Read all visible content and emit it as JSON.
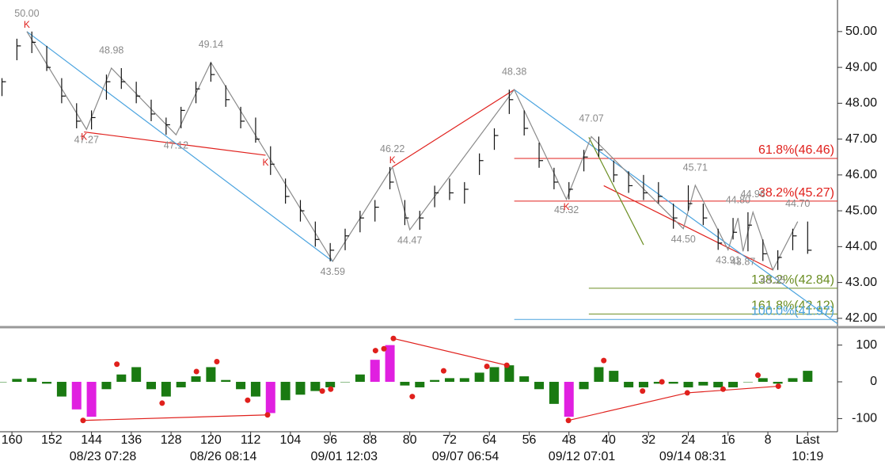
{
  "chart_data": [
    {
      "type": "ohlc",
      "xlim": [
        162.4,
        -6
      ],
      "ylim": [
        41.82,
        50.88
      ],
      "yticks": [
        {
          "value": 42,
          "label": "42.00"
        },
        {
          "value": 43,
          "label": "43.00"
        },
        {
          "value": 44,
          "label": "44.00"
        },
        {
          "value": 45,
          "label": "45.00"
        },
        {
          "value": 46,
          "label": "46.00"
        },
        {
          "value": 47,
          "label": "47.00"
        },
        {
          "value": 48,
          "label": "48.00"
        },
        {
          "value": 49,
          "label": "49.00"
        },
        {
          "value": 50,
          "label": "50.00"
        }
      ],
      "color": "#111111",
      "x": [
        162,
        159,
        156,
        153,
        150,
        147,
        144,
        141,
        138,
        135,
        132,
        129,
        126,
        123,
        120,
        117,
        114,
        111,
        108,
        105,
        102,
        99,
        96,
        93,
        90,
        87,
        84,
        81,
        78,
        75,
        72,
        69,
        66,
        63,
        60,
        57,
        54,
        51,
        48,
        45,
        42,
        39,
        36,
        33,
        30,
        27,
        24,
        21,
        18,
        15,
        12,
        9,
        6,
        3,
        0
      ],
      "high": [
        48.7,
        49.8,
        50.0,
        49.6,
        48.7,
        48.0,
        47.8,
        48.8,
        48.98,
        48.6,
        48.1,
        47.6,
        47.9,
        48.6,
        49.14,
        48.5,
        47.9,
        47.6,
        46.8,
        45.9,
        45.3,
        44.7,
        44.1,
        44.5,
        45.0,
        45.3,
        46.22,
        45.3,
        45.0,
        45.7,
        45.9,
        45.8,
        46.6,
        47.3,
        48.38,
        47.8,
        46.9,
        46.2,
        45.8,
        46.7,
        47.07,
        46.4,
        46.1,
        46.0,
        45.8,
        45.2,
        45.71,
        45.2,
        44.5,
        44.8,
        44.96,
        44.2,
        43.9,
        44.5,
        44.7
      ],
      "low": [
        48.2,
        49.2,
        49.4,
        48.9,
        48.0,
        47.3,
        47.27,
        48.1,
        48.4,
        48.0,
        47.5,
        47.12,
        47.3,
        48.0,
        48.6,
        47.9,
        47.3,
        46.9,
        46.0,
        45.2,
        44.7,
        44.0,
        43.59,
        43.9,
        44.4,
        44.7,
        45.6,
        44.6,
        44.47,
        45.1,
        45.3,
        45.2,
        46.0,
        46.7,
        47.7,
        47.1,
        46.2,
        45.6,
        45.32,
        46.1,
        46.5,
        45.8,
        45.5,
        45.3,
        45.2,
        44.5,
        45.0,
        44.6,
        43.91,
        44.2,
        43.87,
        43.6,
        43.35,
        43.9,
        43.8
      ],
      "close": [
        48.6,
        49.6,
        49.7,
        49.0,
        48.2,
        47.5,
        47.6,
        48.6,
        48.6,
        48.2,
        47.7,
        47.4,
        47.8,
        48.4,
        48.8,
        48.1,
        47.5,
        47.0,
        46.3,
        45.4,
        45.0,
        44.2,
        43.9,
        44.3,
        44.8,
        45.1,
        45.8,
        44.8,
        44.8,
        45.5,
        45.5,
        45.6,
        46.4,
        47.1,
        48.1,
        47.3,
        46.4,
        45.8,
        45.6,
        46.5,
        46.7,
        46.0,
        45.7,
        45.5,
        45.4,
        44.8,
        45.2,
        44.8,
        44.1,
        44.4,
        44.6,
        43.8,
        43.7,
        44.3,
        43.9
      ],
      "pivots": [
        {
          "x": 157,
          "value": 50.0,
          "label": "50.00",
          "kind": "high"
        },
        {
          "x": 145,
          "value": 47.27,
          "label": "47.27",
          "kind": "low"
        },
        {
          "x": 140,
          "value": 48.98,
          "label": "48.98",
          "kind": "high"
        },
        {
          "x": 127,
          "value": 47.12,
          "label": "47.12",
          "kind": "low"
        },
        {
          "x": 120,
          "value": 49.14,
          "label": "49.14",
          "kind": "high"
        },
        {
          "x": 95.5,
          "value": 43.59,
          "label": "43.59",
          "kind": "low"
        },
        {
          "x": 83.5,
          "value": 46.22,
          "label": "46.22",
          "kind": "high"
        },
        {
          "x": 80,
          "value": 44.47,
          "label": "44.47",
          "kind": "low"
        },
        {
          "x": 59,
          "value": 48.38,
          "label": "48.38",
          "kind": "high"
        },
        {
          "x": 48.5,
          "value": 45.32,
          "label": "45.32",
          "kind": "low"
        },
        {
          "x": 43.5,
          "value": 47.07,
          "label": "47.07",
          "kind": "high"
        },
        {
          "x": 25,
          "value": 44.5,
          "label": "44.50",
          "kind": "low"
        },
        {
          "x": 22.6,
          "value": 45.71,
          "label": "45.71",
          "kind": "high"
        },
        {
          "x": 16,
          "value": 43.91,
          "label": "43.91",
          "kind": "low"
        },
        {
          "x": 14,
          "value": 44.8,
          "label": "44.80",
          "kind": "high"
        },
        {
          "x": 13,
          "value": 43.87,
          "label": "43.87",
          "kind": "low"
        },
        {
          "x": 11,
          "value": 44.96,
          "label": "44.96",
          "kind": "high"
        },
        {
          "x": 7,
          "value": 43.35,
          "label": "43.35",
          "kind": "low"
        },
        {
          "x": 2,
          "value": 44.7,
          "label": "44.70",
          "kind": "high"
        }
      ],
      "markers": [
        {
          "x": 157,
          "value": 50.0,
          "label": "K",
          "kind": "high"
        },
        {
          "x": 145.5,
          "value": 47.27,
          "label": "K",
          "kind": "low"
        },
        {
          "x": 109,
          "value": 46.55,
          "label": "K",
          "kind": "low"
        },
        {
          "x": 83.5,
          "value": 46.22,
          "label": "K",
          "kind": "high"
        },
        {
          "x": 48.5,
          "value": 45.32,
          "label": "K",
          "kind": "low"
        }
      ],
      "lines": [
        {
          "color": "#e0201c",
          "x": [
            145.5,
            109
          ],
          "values": [
            47.2,
            46.55
          ]
        },
        {
          "color": "#e0201c",
          "x": [
            83.5,
            59
          ],
          "values": [
            46.22,
            48.38
          ]
        },
        {
          "color": "#e0201c",
          "x": [
            41,
            7
          ],
          "values": [
            45.7,
            43.35
          ]
        },
        {
          "color": "#4aa3df",
          "x": [
            157,
            95.5
          ],
          "values": [
            50.0,
            43.59
          ]
        },
        {
          "color": "#4aa3df",
          "x": [
            59,
            -6
          ],
          "values": [
            48.38,
            41.85
          ]
        },
        {
          "color": "#6b8e23",
          "x": [
            44,
            33
          ],
          "values": [
            47.05,
            44.05
          ]
        }
      ],
      "levels": [
        {
          "label": "61.8%(46.46)",
          "value": 46.46,
          "from": 59,
          "color": "#e0201c"
        },
        {
          "label": "38.2%(45.27)",
          "value": 45.27,
          "from": 59,
          "color": "#e0201c"
        },
        {
          "label": "138.2%(42.84)",
          "value": 42.84,
          "from": 44,
          "color": "#6b8e23"
        },
        {
          "label": "161.8%(42.12)",
          "value": 42.12,
          "from": 44,
          "color": "#6b8e23"
        },
        {
          "label": "100.0%(41.97)",
          "value": 41.97,
          "from": 59,
          "color": "#4aa3df"
        }
      ]
    },
    {
      "type": "bar",
      "xlim": [
        162.4,
        -6
      ],
      "ylim": [
        -125,
        138
      ],
      "yticks": [
        -100,
        0,
        100
      ],
      "xticks": [
        160,
        152,
        144,
        136,
        128,
        120,
        112,
        104,
        96,
        88,
        80,
        72,
        64,
        56,
        48,
        40,
        32,
        24,
        16,
        8,
        {
          "value": 0,
          "label": "Last"
        }
      ],
      "date_ticks": [
        {
          "value": 141.7,
          "label": "08/23 07:28"
        },
        {
          "value": 117.5,
          "label": "08/26 08:14"
        },
        {
          "value": 93.2,
          "label": "09/01 12:03"
        },
        {
          "value": 68.8,
          "label": "09/07 06:54"
        },
        {
          "value": 45.4,
          "label": "09/12 07:01"
        },
        {
          "value": 23.1,
          "label": "09/14 08:31"
        },
        {
          "value": 0,
          "label": "10:19"
        }
      ],
      "x": [
        162,
        159,
        156,
        153,
        150,
        147,
        144,
        141,
        138,
        135,
        132,
        129,
        126,
        123,
        120,
        117,
        114,
        111,
        108,
        105,
        102,
        99,
        96,
        93,
        90,
        87,
        84,
        81,
        78,
        75,
        72,
        69,
        66,
        63,
        60,
        57,
        54,
        51,
        48,
        45,
        42,
        39,
        36,
        33,
        30,
        27,
        24,
        21,
        18,
        15,
        12,
        9,
        6,
        3,
        0
      ],
      "values": [
        0,
        8,
        10,
        -5,
        -40,
        -75,
        -95,
        -20,
        20,
        40,
        -20,
        -40,
        -15,
        15,
        40,
        5,
        -20,
        -40,
        -85,
        -50,
        -35,
        -25,
        -15,
        0,
        20,
        60,
        100,
        -10,
        -15,
        5,
        10,
        10,
        25,
        40,
        45,
        15,
        -20,
        -60,
        -95,
        -20,
        40,
        30,
        -15,
        -15,
        -5,
        -5,
        -15,
        -10,
        -15,
        -15,
        0,
        10,
        -5,
        10,
        30
      ],
      "colors": [
        "#1a7a12",
        "#1a7a12",
        "#1a7a12",
        "#1a7a12",
        "#1a7a12",
        "#e020e0",
        "#e020e0",
        "#1a7a12",
        "#1a7a12",
        "#1a7a12",
        "#1a7a12",
        "#1a7a12",
        "#1a7a12",
        "#1a7a12",
        "#1a7a12",
        "#1a7a12",
        "#1a7a12",
        "#1a7a12",
        "#e020e0",
        "#1a7a12",
        "#1a7a12",
        "#1a7a12",
        "#1a7a12",
        "#1a7a12",
        "#1a7a12",
        "#e020e0",
        "#e020e0",
        "#1a7a12",
        "#1a7a12",
        "#1a7a12",
        "#1a7a12",
        "#1a7a12",
        "#1a7a12",
        "#1a7a12",
        "#1a7a12",
        "#1a7a12",
        "#1a7a12",
        "#1a7a12",
        "#e020e0",
        "#1a7a12",
        "#1a7a12",
        "#1a7a12",
        "#1a7a12",
        "#1a7a12",
        "#1a7a12",
        "#1a7a12",
        "#1a7a12",
        "#1a7a12",
        "#1a7a12",
        "#1a7a12",
        "#1a7a12",
        "#1a7a12",
        "#1a7a12",
        "#1a7a12",
        "#1a7a12"
      ],
      "dots": [
        {
          "x": 145.7,
          "value": -105
        },
        {
          "x": 138.9,
          "value": 48
        },
        {
          "x": 129.8,
          "value": -58
        },
        {
          "x": 122.9,
          "value": 28
        },
        {
          "x": 118.8,
          "value": 55
        },
        {
          "x": 112.6,
          "value": -50
        },
        {
          "x": 108.6,
          "value": -90
        },
        {
          "x": 97.6,
          "value": -25
        },
        {
          "x": 95.9,
          "value": -20
        },
        {
          "x": 86.9,
          "value": 85
        },
        {
          "x": 85.2,
          "value": 90
        },
        {
          "x": 83.3,
          "value": 118
        },
        {
          "x": 79.5,
          "value": -40
        },
        {
          "x": 73.2,
          "value": 30
        },
        {
          "x": 64.5,
          "value": 42
        },
        {
          "x": 60.5,
          "value": 45
        },
        {
          "x": 48.1,
          "value": -105
        },
        {
          "x": 41,
          "value": 58
        },
        {
          "x": 33.2,
          "value": -25
        },
        {
          "x": 29.3,
          "value": 0
        },
        {
          "x": 24.2,
          "value": -30
        },
        {
          "x": 17,
          "value": -20
        },
        {
          "x": 10,
          "value": 18
        },
        {
          "x": 5.9,
          "value": -12
        }
      ],
      "lines": [
        {
          "color": "#e0201c",
          "x": [
            145.7,
            108.6
          ],
          "values": [
            -105,
            -90
          ]
        },
        {
          "color": "#e0201c",
          "x": [
            83.3,
            60.5
          ],
          "values": [
            118,
            45
          ]
        },
        {
          "color": "#e0201c",
          "x": [
            48.1,
            24.2,
            5.9
          ],
          "values": [
            -105,
            -30,
            -12
          ]
        }
      ]
    }
  ]
}
